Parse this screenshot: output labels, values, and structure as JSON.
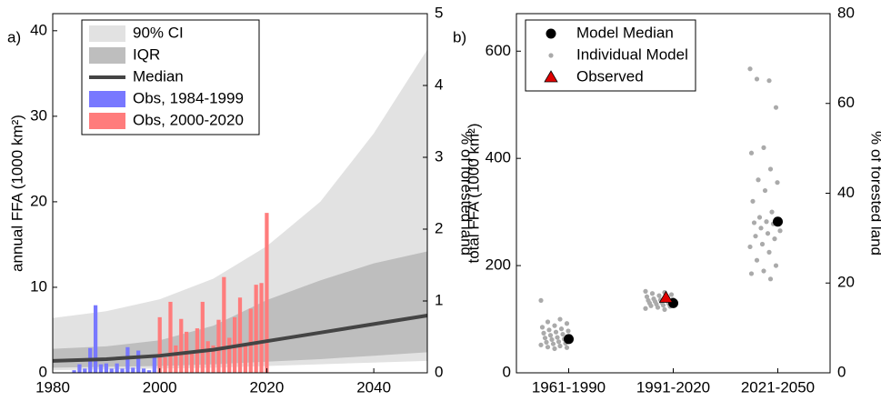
{
  "chart_data": [
    {
      "type": "area",
      "label": "a)",
      "ylabel": "annual FFA (1000 km²)",
      "y2label": "% of forested land",
      "x": [
        1980,
        1990,
        2000,
        2010,
        2020,
        2030,
        2040,
        2050
      ],
      "xlim": [
        1980,
        2050
      ],
      "xticks": [
        1980,
        2000,
        2020,
        2040
      ],
      "ylim": [
        0,
        42
      ],
      "yticks": [
        0,
        10,
        20,
        30,
        40
      ],
      "y2lim": [
        0,
        5
      ],
      "y2ticks": [
        0,
        1,
        2,
        3,
        4,
        5
      ],
      "bands": [
        {
          "name": "90% CI",
          "color": "#e2e2e2",
          "upper": [
            6.4,
            7.2,
            8.6,
            11,
            14.8,
            20,
            28,
            37.8
          ],
          "lower": [
            0.3,
            0.4,
            0.5,
            0.6,
            0.8,
            1.0,
            1.2,
            1.4
          ]
        },
        {
          "name": "IQR",
          "color": "#bebebe",
          "upper": [
            2.8,
            3.1,
            3.8,
            5.5,
            8.5,
            10.8,
            12.8,
            14.2
          ],
          "lower": [
            0.6,
            0.7,
            0.8,
            1.0,
            1.3,
            1.6,
            2.0,
            2.4
          ]
        }
      ],
      "series": [
        {
          "name": "Median",
          "color": "#444444",
          "values": [
            1.4,
            1.6,
            2.0,
            2.7,
            3.7,
            4.7,
            5.7,
            6.7
          ]
        }
      ],
      "bars": [
        {
          "name": "Obs, 1984-1999",
          "color": "#7878ff",
          "x": [
            1984,
            1985,
            1986,
            1987,
            1988,
            1989,
            1990,
            1991,
            1992,
            1993,
            1994,
            1995,
            1996,
            1997,
            1998,
            1999
          ],
          "values": [
            0.3,
            1.0,
            0.5,
            2.9,
            7.9,
            1.0,
            1.1,
            0.5,
            1.1,
            0.5,
            3.0,
            0.6,
            2.6,
            0.5,
            0.3,
            2.0
          ]
        },
        {
          "name": "Obs, 2000-2020",
          "color": "#ff7c7c",
          "x": [
            2000,
            2001,
            2002,
            2003,
            2004,
            2005,
            2006,
            2007,
            2008,
            2009,
            2010,
            2011,
            2012,
            2013,
            2014,
            2015,
            2016,
            2017,
            2018,
            2019,
            2020
          ],
          "values": [
            6.5,
            1.8,
            8.3,
            3.2,
            6.3,
            4.8,
            2.3,
            5.2,
            8.3,
            3.7,
            3.2,
            6.2,
            11.2,
            4.1,
            6.5,
            8.8,
            3.4,
            7.5,
            10.3,
            10.5,
            18.7
          ]
        }
      ],
      "legend": "upper left"
    },
    {
      "type": "scatter",
      "label": "b)",
      "ylabel": "total FFA (1000 km²)",
      "y2label": "% of forested land",
      "categories": [
        "1961-1990",
        "1991-2020",
        "2021-2050"
      ],
      "ylim": [
        0,
        670
      ],
      "yticks": [
        0,
        200,
        400,
        600
      ],
      "y2lim": [
        0,
        80
      ],
      "y2ticks": [
        0,
        20,
        40,
        60,
        80
      ],
      "series": [
        {
          "name": "Model Median",
          "color": "#000000",
          "marker": "circle",
          "values": [
            63,
            130,
            282
          ]
        },
        {
          "name": "Individual Model",
          "color": "#aaaaaa",
          "marker": "dot",
          "values": [
            [
              135,
              100,
              95,
              92,
              88,
              85,
              82,
              80,
              78,
              76,
              74,
              72,
              70,
              68,
              66,
              65,
              63,
              62,
              60,
              58,
              57,
              55,
              54,
              52,
              50,
              48,
              47,
              45
            ],
            [
              152,
              150,
              148,
              146,
              144,
              142,
              140,
              138,
              137,
              136,
              135,
              134,
              133,
              132,
              131,
              130,
              129,
              128,
              127,
              126,
              125,
              124,
              122,
              120,
              118
            ],
            [
              567,
              545,
              548,
              495,
              420,
              410,
              380,
              360,
              355,
              340,
              320,
              300,
              290,
              285,
              282,
              280,
              278,
              270,
              265,
              260,
              255,
              250,
              240,
              235,
              225,
              210,
              200,
              190,
              185,
              175
            ]
          ]
        },
        {
          "name": "Observed",
          "color": "#e00000",
          "marker": "triangle",
          "values": [
            null,
            140,
            null
          ]
        }
      ],
      "legend": "upper left"
    }
  ]
}
